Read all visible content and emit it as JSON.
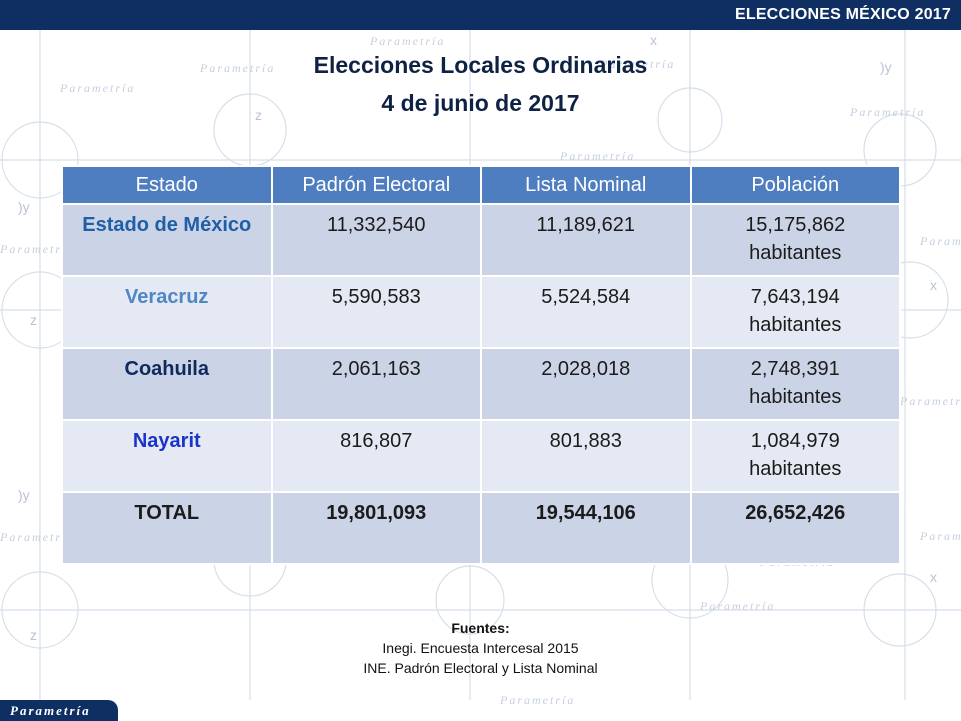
{
  "header": {
    "title": "ELECCIONES MÉXICO 2017"
  },
  "slide": {
    "title_line1": "Elecciones Locales Ordinarias",
    "title_line2": "4 de junio de 2017"
  },
  "table": {
    "headers": [
      "Estado",
      "Padrón Electoral",
      "Lista Nominal",
      "Población"
    ],
    "rows": [
      {
        "estado": "Estado de México",
        "color": "#1f5fa8",
        "padron": "11,332,540",
        "lista": "11,189,621",
        "poblacion_num": "15,175,862",
        "poblacion_unit": "habitantes"
      },
      {
        "estado": "Veracruz",
        "color": "#4f86c6",
        "padron": "5,590,583",
        "lista": "5,524,584",
        "poblacion_num": "7,643,194",
        "poblacion_unit": "habitantes"
      },
      {
        "estado": "Coahuila",
        "color": "#0f2a5c",
        "padron": "2,061,163",
        "lista": "2,028,018",
        "poblacion_num": "2,748,391",
        "poblacion_unit": "habitantes"
      },
      {
        "estado": "Nayarit",
        "color": "#1a33c8",
        "padron": "816,807",
        "lista": "801,883",
        "poblacion_num": "1,084,979",
        "poblacion_unit": "habitantes"
      }
    ],
    "total": {
      "label": "TOTAL",
      "padron": "19,801,093",
      "lista": "19,544,106",
      "poblacion": "26,652,426"
    }
  },
  "sources": {
    "heading": "Fuentes:",
    "line1": "Inegi. Encuesta Intercesal 2015",
    "line2": "INE. Padrón Electoral y Lista Nominal"
  },
  "logo": {
    "text": "Parametría"
  },
  "watermark": {
    "text": "Parametría"
  }
}
